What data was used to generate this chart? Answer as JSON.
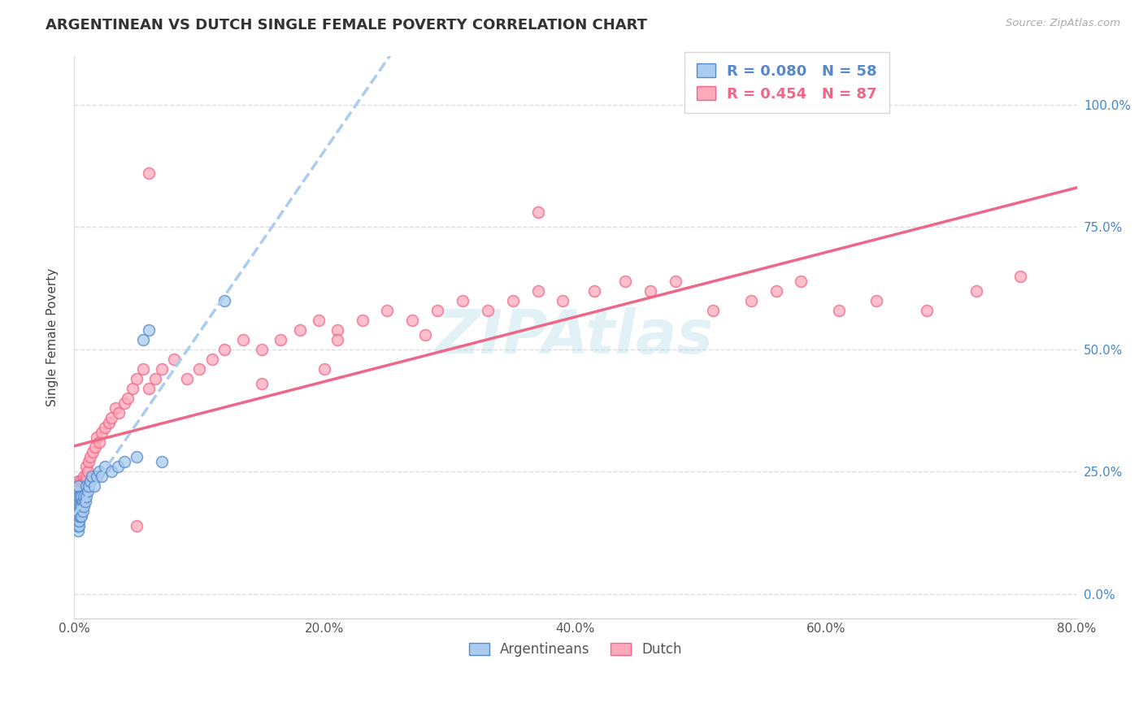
{
  "title": "ARGENTINEAN VS DUTCH SINGLE FEMALE POVERTY CORRELATION CHART",
  "source": "Source: ZipAtlas.com",
  "ylabel": "Single Female Poverty",
  "xlim": [
    0.0,
    0.8
  ],
  "ylim": [
    0.0,
    1.1
  ],
  "plot_ylim": [
    -0.05,
    1.1
  ],
  "xticks": [
    0.0,
    0.2,
    0.4,
    0.6,
    0.8
  ],
  "xtick_labels": [
    "0.0%",
    "20.0%",
    "40.0%",
    "60.0%",
    "80.0%"
  ],
  "yticks": [
    0.0,
    0.25,
    0.5,
    0.75,
    1.0
  ],
  "ytick_labels": [
    "0.0%",
    "25.0%",
    "50.0%",
    "75.0%",
    "100.0%"
  ],
  "blue_fill": "#aaccee",
  "blue_edge": "#5588cc",
  "pink_fill": "#ffaabb",
  "pink_edge": "#ee6688",
  "blue_R": 0.08,
  "blue_N": 58,
  "pink_R": 0.454,
  "pink_N": 87,
  "legend_blue_label": "Argentineans",
  "legend_pink_label": "Dutch",
  "watermark": "ZIPAtlas",
  "bg_color": "#ffffff",
  "grid_color": "#dddddd",
  "blue_scatter_x": [
    0.001,
    0.001,
    0.001,
    0.001,
    0.001,
    0.002,
    0.002,
    0.002,
    0.002,
    0.002,
    0.002,
    0.002,
    0.003,
    0.003,
    0.003,
    0.003,
    0.003,
    0.003,
    0.003,
    0.003,
    0.003,
    0.004,
    0.004,
    0.004,
    0.004,
    0.004,
    0.004,
    0.005,
    0.005,
    0.005,
    0.005,
    0.006,
    0.006,
    0.006,
    0.007,
    0.007,
    0.008,
    0.008,
    0.009,
    0.01,
    0.01,
    0.011,
    0.012,
    0.013,
    0.014,
    0.016,
    0.018,
    0.02,
    0.022,
    0.025,
    0.03,
    0.035,
    0.04,
    0.05,
    0.055,
    0.06,
    0.07,
    0.12
  ],
  "blue_scatter_y": [
    0.15,
    0.16,
    0.17,
    0.18,
    0.2,
    0.14,
    0.15,
    0.16,
    0.17,
    0.18,
    0.19,
    0.21,
    0.13,
    0.14,
    0.15,
    0.16,
    0.17,
    0.18,
    0.19,
    0.2,
    0.22,
    0.14,
    0.15,
    0.16,
    0.17,
    0.18,
    0.2,
    0.16,
    0.17,
    0.18,
    0.2,
    0.16,
    0.18,
    0.2,
    0.17,
    0.19,
    0.18,
    0.2,
    0.19,
    0.2,
    0.22,
    0.21,
    0.22,
    0.23,
    0.24,
    0.22,
    0.24,
    0.25,
    0.24,
    0.26,
    0.25,
    0.26,
    0.27,
    0.28,
    0.52,
    0.54,
    0.27,
    0.6
  ],
  "pink_scatter_x": [
    0.001,
    0.001,
    0.001,
    0.002,
    0.002,
    0.002,
    0.002,
    0.003,
    0.003,
    0.003,
    0.003,
    0.004,
    0.004,
    0.004,
    0.005,
    0.005,
    0.005,
    0.006,
    0.006,
    0.007,
    0.007,
    0.008,
    0.008,
    0.009,
    0.01,
    0.01,
    0.011,
    0.012,
    0.013,
    0.015,
    0.017,
    0.018,
    0.02,
    0.022,
    0.025,
    0.028,
    0.03,
    0.033,
    0.036,
    0.04,
    0.043,
    0.047,
    0.05,
    0.055,
    0.06,
    0.065,
    0.07,
    0.08,
    0.09,
    0.1,
    0.11,
    0.12,
    0.135,
    0.15,
    0.165,
    0.18,
    0.195,
    0.21,
    0.23,
    0.25,
    0.27,
    0.29,
    0.31,
    0.33,
    0.35,
    0.37,
    0.39,
    0.415,
    0.44,
    0.46,
    0.48,
    0.51,
    0.54,
    0.56,
    0.58,
    0.61,
    0.64,
    0.68,
    0.72,
    0.755,
    0.21,
    0.28,
    0.05,
    0.06,
    0.15,
    0.2,
    0.37
  ],
  "pink_scatter_y": [
    0.15,
    0.17,
    0.19,
    0.16,
    0.18,
    0.2,
    0.22,
    0.17,
    0.19,
    0.21,
    0.23,
    0.18,
    0.2,
    0.22,
    0.19,
    0.21,
    0.23,
    0.2,
    0.22,
    0.21,
    0.23,
    0.22,
    0.24,
    0.23,
    0.24,
    0.26,
    0.25,
    0.27,
    0.28,
    0.29,
    0.3,
    0.32,
    0.31,
    0.33,
    0.34,
    0.35,
    0.36,
    0.38,
    0.37,
    0.39,
    0.4,
    0.42,
    0.44,
    0.46,
    0.42,
    0.44,
    0.46,
    0.48,
    0.44,
    0.46,
    0.48,
    0.5,
    0.52,
    0.5,
    0.52,
    0.54,
    0.56,
    0.54,
    0.56,
    0.58,
    0.56,
    0.58,
    0.6,
    0.58,
    0.6,
    0.62,
    0.6,
    0.62,
    0.64,
    0.62,
    0.64,
    0.58,
    0.6,
    0.62,
    0.64,
    0.58,
    0.6,
    0.58,
    0.62,
    0.65,
    0.52,
    0.53,
    0.14,
    0.86,
    0.43,
    0.46,
    0.78
  ]
}
